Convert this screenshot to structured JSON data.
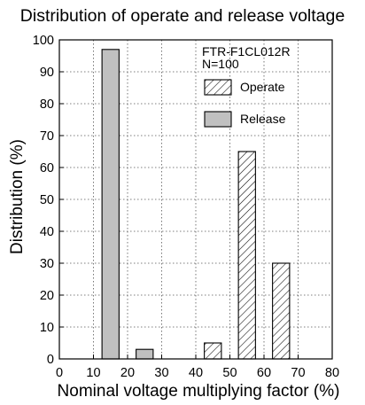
{
  "chart_data": {
    "type": "bar",
    "title": "Distribution of operate and release voltage",
    "xlabel": "Nominal voltage multiplying factor (%)",
    "ylabel": "Distribution (%)",
    "xlim": [
      0,
      80
    ],
    "ylim": [
      0,
      100
    ],
    "xticks": [
      0,
      10,
      20,
      30,
      40,
      50,
      60,
      70,
      80
    ],
    "yticks": [
      0,
      10,
      20,
      30,
      40,
      50,
      60,
      70,
      80,
      90,
      100
    ],
    "grid": true,
    "bin_width": 5,
    "legend_position": "top-right",
    "series": [
      {
        "name": "Operate",
        "style": "hatched",
        "bins": [
          {
            "x0": 42.5,
            "x1": 47.5,
            "value": 5
          },
          {
            "x0": 52.5,
            "x1": 57.5,
            "value": 65
          },
          {
            "x0": 62.5,
            "x1": 67.5,
            "value": 30
          }
        ]
      },
      {
        "name": "Release",
        "style": "solid",
        "color": "#c0c0c0",
        "bins": [
          {
            "x0": 12.5,
            "x1": 17.5,
            "value": 97
          },
          {
            "x0": 22.5,
            "x1": 27.5,
            "value": 3
          }
        ]
      }
    ],
    "annotation": {
      "model": "FTR-F1CL012R",
      "sample": "N=100"
    }
  }
}
